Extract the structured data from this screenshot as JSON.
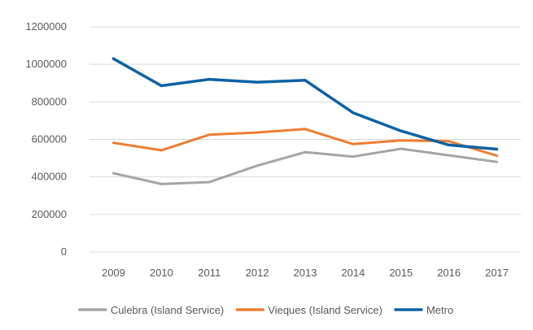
{
  "chart_data": {
    "type": "line",
    "title": "",
    "xlabel": "",
    "ylabel": "",
    "categories": [
      "2009",
      "2010",
      "2011",
      "2012",
      "2013",
      "2014",
      "2015",
      "2016",
      "2017"
    ],
    "ylim": [
      0,
      1200000
    ],
    "yticks": [
      0,
      200000,
      400000,
      600000,
      800000,
      1000000,
      1200000
    ],
    "grid": true,
    "legend_position": "bottom",
    "series": [
      {
        "name": "Culebra (Island Service)",
        "color": "#a5a5a5",
        "values": [
          420000,
          362000,
          372000,
          460000,
          532000,
          508000,
          550000,
          515000,
          480000
        ]
      },
      {
        "name": "Vieques (Island Service)",
        "color": "#ed7d31",
        "values": [
          582000,
          542000,
          625000,
          637000,
          655000,
          575000,
          595000,
          590000,
          513000
        ]
      },
      {
        "name": "Metro",
        "color": "#0b62a4",
        "values": [
          1030000,
          886000,
          920000,
          905000,
          915000,
          742000,
          645000,
          570000,
          548000
        ]
      }
    ]
  }
}
